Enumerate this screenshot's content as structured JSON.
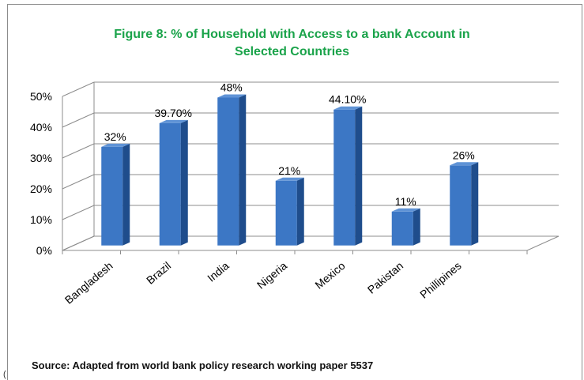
{
  "chart_data": {
    "type": "bar",
    "title_line1": "Figure 8: % of Household with Access to a bank Account in",
    "title_line2": "Selected Countries",
    "categories": [
      "Bangladesh",
      "Brazil",
      "India",
      "Nigeria",
      "Mexico",
      "Pakistan",
      "Phillipines"
    ],
    "values": [
      32,
      39.7,
      48,
      21,
      44.1,
      11,
      26
    ],
    "data_labels": [
      "32%",
      "39.70%",
      "48%",
      "21%",
      "44.10%",
      "11%",
      "26%"
    ],
    "y_ticks": [
      "0%",
      "10%",
      "20%",
      "30%",
      "40%",
      "50%"
    ],
    "ylim": [
      0,
      50
    ],
    "xlabel": "",
    "ylabel": "",
    "grid": true,
    "legend": "none",
    "style": "3d-column",
    "colors": {
      "bar_front": "#3c77c5",
      "bar_side": "#1f4d8c",
      "bar_top": "#5f93d6",
      "title": "#1aa34a"
    }
  },
  "source": "Source:   Adapted from world bank policy research working paper 5537",
  "stray_mark": "("
}
